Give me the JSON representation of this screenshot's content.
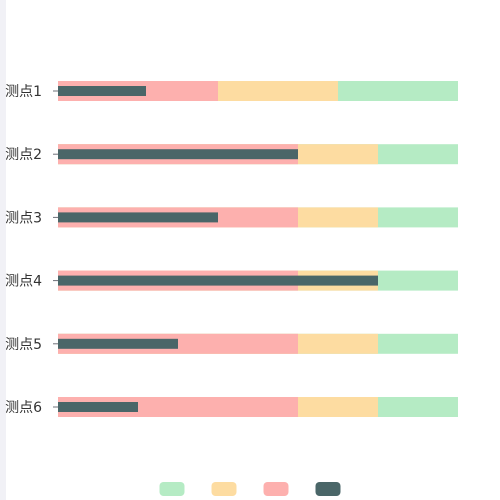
{
  "chart_data": {
    "type": "bar",
    "orientation": "horizontal",
    "categories": [
      "测点1",
      "测点2",
      "测点3",
      "测点4",
      "测点5",
      "测点6"
    ],
    "xlim": [
      0,
      100
    ],
    "grid": false,
    "legend_position": "bottom-center",
    "bands": [
      {
        "color": "#b5ebc4",
        "values": [
          100,
          100,
          100,
          100,
          100,
          100
        ]
      },
      {
        "color": "#fddca1",
        "values": [
          70,
          80,
          80,
          80,
          80,
          80
        ]
      },
      {
        "color": "#fdb0ae",
        "values": [
          40,
          60,
          60,
          60,
          60,
          60
        ]
      }
    ],
    "series": [
      {
        "color": "#4a6668",
        "values": [
          22,
          60,
          40,
          80,
          30,
          20
        ]
      }
    ],
    "legend": [
      {
        "color": "#b5ebc4"
      },
      {
        "color": "#fddca1"
      },
      {
        "color": "#fdb0ae"
      },
      {
        "color": "#4a6668"
      }
    ]
  }
}
